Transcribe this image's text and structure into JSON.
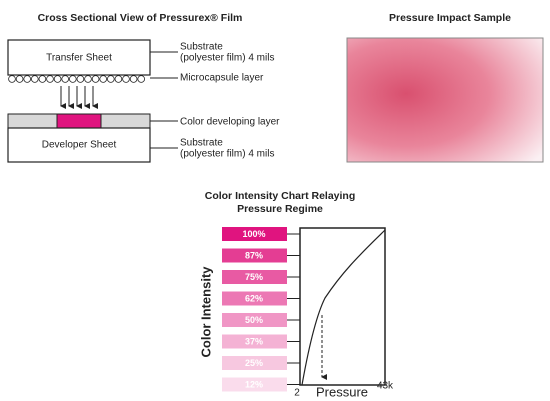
{
  "cross_section": {
    "title": "Cross Sectional View of Pressurex® Film",
    "transfer_sheet": "Transfer Sheet",
    "developer_sheet": "Developer Sheet",
    "labels": {
      "substrate_top": "Substrate",
      "substrate_top_detail": "(polyester film) 4 mils",
      "microcapsule": "Microcapsule layer",
      "color_layer": "Color developing layer",
      "substrate_bottom": "Substrate",
      "substrate_bottom_detail": "(polyester film) 4 mils"
    }
  },
  "sample": {
    "title": "Pressure Impact Sample"
  },
  "intensity_chart": {
    "title_line1": "Color Intensity Chart Relaying",
    "title_line2": "Pressure Regime",
    "y_label": "Color Intensity",
    "x_label": "Pressure",
    "x_min": "2",
    "x_max": "43k",
    "swatches": [
      {
        "label": "100%",
        "color": "#e0147f"
      },
      {
        "label": "87%",
        "color": "#e43d93"
      },
      {
        "label": "75%",
        "color": "#e85aa3"
      },
      {
        "label": "62%",
        "color": "#ec78b4"
      },
      {
        "label": "50%",
        "color": "#f096c5"
      },
      {
        "label": "37%",
        "color": "#f4b2d4"
      },
      {
        "label": "25%",
        "color": "#f7c8e0"
      },
      {
        "label": "12%",
        "color": "#fadcec"
      }
    ]
  }
}
